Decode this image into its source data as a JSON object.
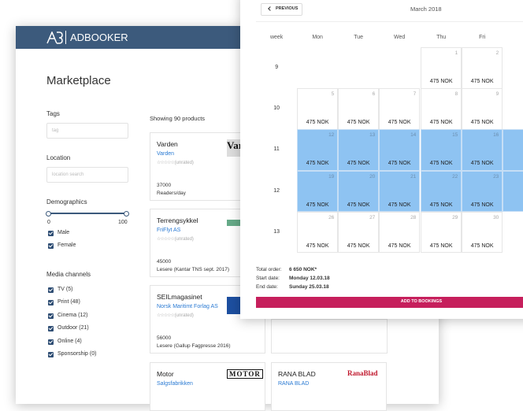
{
  "app": {
    "logo": "ADBOOKER",
    "page_title": "Marketplace",
    "filters": {
      "tags_label": "Tags",
      "tags_placeholder": "tag",
      "location_label": "Location",
      "location_placeholder": "location search",
      "demographics_label": "Demographics",
      "range_min": "0",
      "range_max": "100",
      "genders": [
        "Male",
        "Female"
      ],
      "media_label": "Media channels",
      "media": [
        "TV (5)",
        "Print (48)",
        "Cinema (12)",
        "Outdoor (21)",
        "Online (4)",
        "Sponsorship (0)"
      ]
    },
    "showing": "Showing 90 products",
    "cards": [
      {
        "title": "Varden",
        "publisher": "Varden",
        "rating": "(unrated)",
        "reach": "37000",
        "reach_label": "Readers/day",
        "logo": "Var"
      },
      {
        "title": "Terrengsykkel",
        "publisher": "FriFlyt AS",
        "rating": "(unrated)",
        "reach": "45000",
        "reach_label": "Lesere (Kantar TNS sept. 2017)"
      },
      {
        "title": "SEILmagasinet",
        "publisher": "Norsk Maritimt Forlag AS",
        "rating": "(unrated)",
        "reach": "56000",
        "reach_label": "Lesere (Gallup Fagpresse 2016)"
      },
      {
        "title": "Motor",
        "publisher": "Salgsfabrikken",
        "logo": "MOTOR"
      },
      {
        "title": "RANA BLAD",
        "publisher": "RANA BLAD",
        "logo": "RanaBlad"
      }
    ]
  },
  "calendar": {
    "previous": "PREVIOUS",
    "month": "March 2018",
    "headers": [
      "week",
      "Mon",
      "Tue",
      "Wed",
      "Thu",
      "Fri"
    ],
    "weeks": [
      {
        "week": "9",
        "days": [
          null,
          null,
          null,
          {
            "date": "1",
            "price": "475 NOK"
          },
          {
            "date": "2",
            "price": "475 NOK"
          }
        ]
      },
      {
        "week": "10",
        "days": [
          {
            "date": "5",
            "price": "475 NOK"
          },
          {
            "date": "6",
            "price": "475 NOK"
          },
          {
            "date": "7",
            "price": "475 NOK"
          },
          {
            "date": "8",
            "price": "475 NOK"
          },
          {
            "date": "9",
            "price": "475 NOK"
          }
        ]
      },
      {
        "week": "11",
        "selected": true,
        "days": [
          {
            "date": "12",
            "price": "475 NOK"
          },
          {
            "date": "13",
            "price": "475 NOK"
          },
          {
            "date": "14",
            "price": "475 NOK"
          },
          {
            "date": "15",
            "price": "475 NOK"
          },
          {
            "date": "16",
            "price": "475 NOK"
          }
        ]
      },
      {
        "week": "12",
        "selected": true,
        "days": [
          {
            "date": "19",
            "price": "475 NOK"
          },
          {
            "date": "20",
            "price": "475 NOK"
          },
          {
            "date": "21",
            "price": "475 NOK"
          },
          {
            "date": "22",
            "price": "475 NOK"
          },
          {
            "date": "23",
            "price": "475 NOK"
          }
        ]
      },
      {
        "week": "13",
        "days": [
          {
            "date": "26",
            "price": "475 NOK"
          },
          {
            "date": "27",
            "price": "475 NOK"
          },
          {
            "date": "28",
            "price": "475 NOK"
          },
          {
            "date": "29",
            "price": "475 NOK"
          },
          {
            "date": "30",
            "price": "475 NOK"
          }
        ]
      }
    ],
    "summary": {
      "total_label": "Total order:",
      "total": "6 650 NOK*",
      "start_label": "Start date:",
      "start": "Monday 12.03.18",
      "end_label": "End date:",
      "end": "Sunday 25.03.18"
    },
    "button": "ADD TO BOOKINGS"
  }
}
